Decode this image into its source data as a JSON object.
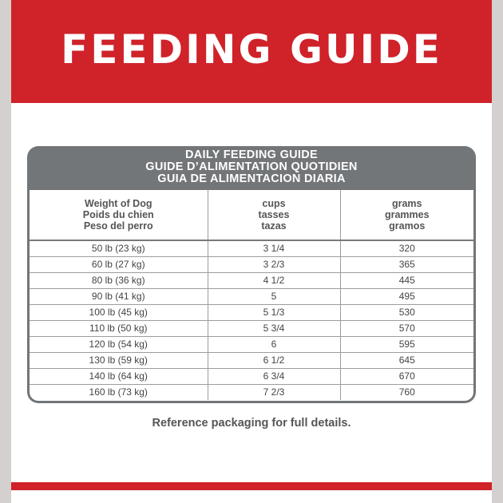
{
  "banner": {
    "title": "FEEDING GUIDE"
  },
  "table": {
    "title_lines": [
      "DAILY FEEDING GUIDE",
      "GUIDE D’ALIMENTATION QUOTIDIEN",
      "GUIA DE ALIMENTACION DIARIA"
    ],
    "columns": [
      [
        "Weight of Dog",
        "Poids du chien",
        "Peso del perro"
      ],
      [
        "cups",
        "tasses",
        "tazas"
      ],
      [
        "grams",
        "grammes",
        "gramos"
      ]
    ],
    "rows": [
      [
        "50 lb (23 kg)",
        "3 1/4",
        "320"
      ],
      [
        "60 lb (27 kg)",
        "3 2/3",
        "365"
      ],
      [
        "80 lb (36 kg)",
        "4 1/2",
        "445"
      ],
      [
        "90 lb (41 kg)",
        "5",
        "495"
      ],
      [
        "100 lb (45 kg)",
        "5 1/3",
        "530"
      ],
      [
        "110 lb (50 kg)",
        "5 3/4",
        "570"
      ],
      [
        "120 lb (54 kg)",
        "6",
        "595"
      ],
      [
        "130 lb (59 kg)",
        "6 1/2",
        "645"
      ],
      [
        "140 lb (64 kg)",
        "6 3/4",
        "670"
      ],
      [
        "160 lb (73 kg)",
        "7 2/3",
        "760"
      ]
    ]
  },
  "footer": {
    "note": "Reference packaging for full details."
  },
  "colors": {
    "brand_red": "#cf2229",
    "header_gray": "#727679"
  }
}
